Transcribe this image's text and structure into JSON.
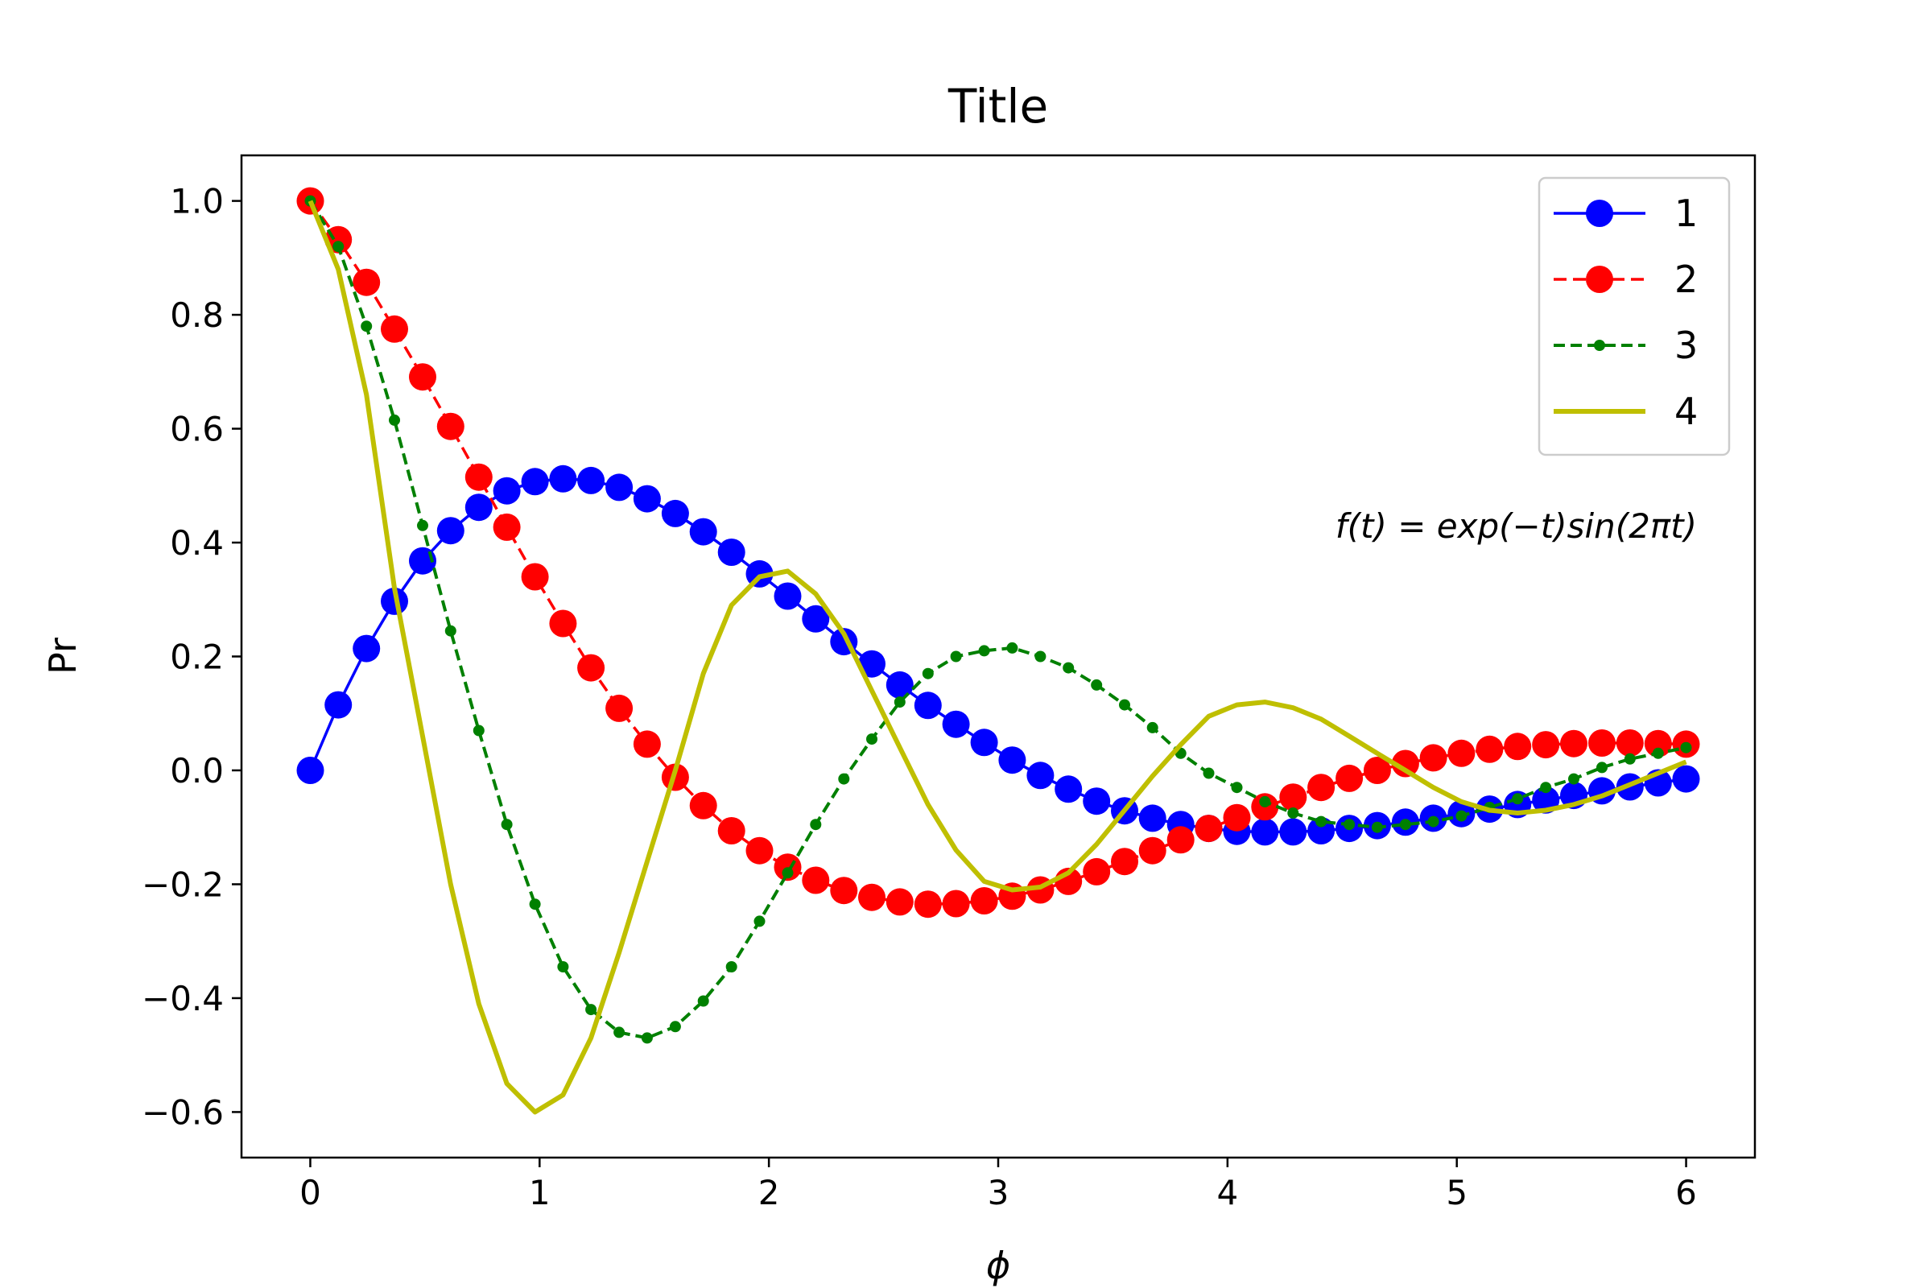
{
  "chart_data": {
    "type": "line",
    "title": "Title",
    "xlabel": "ϕ",
    "ylabel": "Pr",
    "xlim": [
      -0.3,
      6.3
    ],
    "ylim": [
      -0.68,
      1.08
    ],
    "xticks": [
      0,
      1,
      2,
      3,
      4,
      5,
      6
    ],
    "xtick_labels": [
      "0",
      "1",
      "2",
      "3",
      "4",
      "5",
      "6"
    ],
    "yticks": [
      -0.6,
      -0.4,
      -0.2,
      0.0,
      0.2,
      0.4,
      0.6,
      0.8,
      1.0
    ],
    "ytick_labels": [
      "−0.6",
      "−0.4",
      "−0.2",
      "0.0",
      "0.2",
      "0.4",
      "0.6",
      "0.8",
      "1.0"
    ],
    "grid": false,
    "legend_position": "top-right",
    "annotation": "f(t) = exp(−t)sin(2πt)",
    "series": [
      {
        "name": "1",
        "color": "#0000ff",
        "line": "solid",
        "marker": "circle-large",
        "x": [
          0,
          0.122,
          0.245,
          0.367,
          0.49,
          0.612,
          0.735,
          0.857,
          0.98,
          1.102,
          1.224,
          1.347,
          1.469,
          1.592,
          1.714,
          1.837,
          1.959,
          2.082,
          2.204,
          2.327,
          2.449,
          2.571,
          2.694,
          2.816,
          2.939,
          3.061,
          3.184,
          3.306,
          3.429,
          3.551,
          3.673,
          3.796,
          3.918,
          4.041,
          4.163,
          4.286,
          4.408,
          4.531,
          4.653,
          4.776,
          4.898,
          5.02,
          5.143,
          5.265,
          5.388,
          5.51,
          5.633,
          5.755,
          5.878,
          6.0
        ],
        "y": [
          0.0,
          0.115,
          0.214,
          0.297,
          0.368,
          0.421,
          0.462,
          0.491,
          0.507,
          0.512,
          0.509,
          0.497,
          0.477,
          0.451,
          0.419,
          0.383,
          0.345,
          0.306,
          0.266,
          0.226,
          0.187,
          0.15,
          0.114,
          0.081,
          0.049,
          0.018,
          -0.009,
          -0.033,
          -0.054,
          -0.071,
          -0.084,
          -0.095,
          -0.102,
          -0.107,
          -0.108,
          -0.108,
          -0.106,
          -0.102,
          -0.097,
          -0.091,
          -0.084,
          -0.076,
          -0.068,
          -0.06,
          -0.052,
          -0.044,
          -0.036,
          -0.029,
          -0.022,
          -0.015
        ]
      },
      {
        "name": "2",
        "color": "#ff0000",
        "line": "dashed",
        "marker": "circle-large",
        "x": [
          0,
          0.122,
          0.245,
          0.367,
          0.49,
          0.612,
          0.735,
          0.857,
          0.98,
          1.102,
          1.224,
          1.347,
          1.469,
          1.592,
          1.714,
          1.837,
          1.959,
          2.082,
          2.204,
          2.327,
          2.449,
          2.571,
          2.694,
          2.816,
          2.939,
          3.061,
          3.184,
          3.306,
          3.429,
          3.551,
          3.673,
          3.796,
          3.918,
          4.041,
          4.163,
          4.286,
          4.408,
          4.531,
          4.653,
          4.776,
          4.898,
          5.02,
          5.143,
          5.265,
          5.388,
          5.51,
          5.633,
          5.755,
          5.878,
          6.0
        ],
        "y": [
          1.0,
          0.932,
          0.857,
          0.775,
          0.691,
          0.604,
          0.515,
          0.427,
          0.34,
          0.258,
          0.18,
          0.109,
          0.046,
          -0.012,
          -0.062,
          -0.106,
          -0.141,
          -0.17,
          -0.193,
          -0.211,
          -0.223,
          -0.231,
          -0.235,
          -0.234,
          -0.229,
          -0.221,
          -0.21,
          -0.195,
          -0.178,
          -0.16,
          -0.141,
          -0.122,
          -0.102,
          -0.083,
          -0.064,
          -0.047,
          -0.03,
          -0.014,
          0.0,
          0.012,
          0.022,
          0.03,
          0.037,
          0.042,
          0.045,
          0.047,
          0.048,
          0.048,
          0.047,
          0.046
        ]
      },
      {
        "name": "3",
        "color": "#008000",
        "line": "dashed",
        "marker": "dot-small",
        "x": [
          0,
          0.122,
          0.245,
          0.367,
          0.49,
          0.612,
          0.735,
          0.857,
          0.98,
          1.102,
          1.224,
          1.347,
          1.469,
          1.592,
          1.714,
          1.837,
          1.959,
          2.082,
          2.204,
          2.327,
          2.449,
          2.571,
          2.694,
          2.816,
          2.939,
          3.061,
          3.184,
          3.306,
          3.429,
          3.551,
          3.673,
          3.796,
          3.918,
          4.041,
          4.163,
          4.286,
          4.408,
          4.531,
          4.653,
          4.776,
          4.898,
          5.02,
          5.143,
          5.265,
          5.388,
          5.51,
          5.633,
          5.755,
          5.878,
          6.0
        ],
        "y": [
          1.0,
          0.92,
          0.78,
          0.615,
          0.43,
          0.245,
          0.07,
          -0.095,
          -0.235,
          -0.345,
          -0.42,
          -0.46,
          -0.47,
          -0.45,
          -0.405,
          -0.345,
          -0.265,
          -0.18,
          -0.095,
          -0.015,
          0.055,
          0.12,
          0.17,
          0.2,
          0.21,
          0.215,
          0.2,
          0.18,
          0.15,
          0.115,
          0.075,
          0.03,
          -0.005,
          -0.03,
          -0.055,
          -0.075,
          -0.09,
          -0.095,
          -0.1,
          -0.095,
          -0.09,
          -0.08,
          -0.065,
          -0.05,
          -0.03,
          -0.015,
          0.005,
          0.02,
          0.03,
          0.04
        ]
      },
      {
        "name": "4",
        "color": "#bfbf00",
        "line": "solid",
        "marker": "none",
        "x": [
          0,
          0.122,
          0.245,
          0.367,
          0.49,
          0.612,
          0.735,
          0.857,
          0.98,
          1.102,
          1.224,
          1.347,
          1.469,
          1.592,
          1.714,
          1.837,
          1.959,
          2.082,
          2.204,
          2.327,
          2.449,
          2.571,
          2.694,
          2.816,
          2.939,
          3.061,
          3.184,
          3.306,
          3.429,
          3.551,
          3.673,
          3.796,
          3.918,
          4.041,
          4.163,
          4.286,
          4.408,
          4.531,
          4.653,
          4.776,
          4.898,
          5.02,
          5.143,
          5.265,
          5.388,
          5.51,
          5.633,
          5.755,
          5.878,
          6.0
        ],
        "y": [
          1.0,
          0.88,
          0.66,
          0.32,
          0.06,
          -0.2,
          -0.41,
          -0.55,
          -0.6,
          -0.57,
          -0.47,
          -0.32,
          -0.16,
          0.0,
          0.17,
          0.29,
          0.34,
          0.35,
          0.31,
          0.24,
          0.14,
          0.04,
          -0.06,
          -0.14,
          -0.195,
          -0.21,
          -0.205,
          -0.18,
          -0.13,
          -0.07,
          -0.01,
          0.045,
          0.095,
          0.115,
          0.12,
          0.11,
          0.09,
          0.06,
          0.03,
          0.0,
          -0.03,
          -0.055,
          -0.07,
          -0.075,
          -0.07,
          -0.06,
          -0.045,
          -0.025,
          -0.005,
          0.015
        ]
      }
    ]
  }
}
